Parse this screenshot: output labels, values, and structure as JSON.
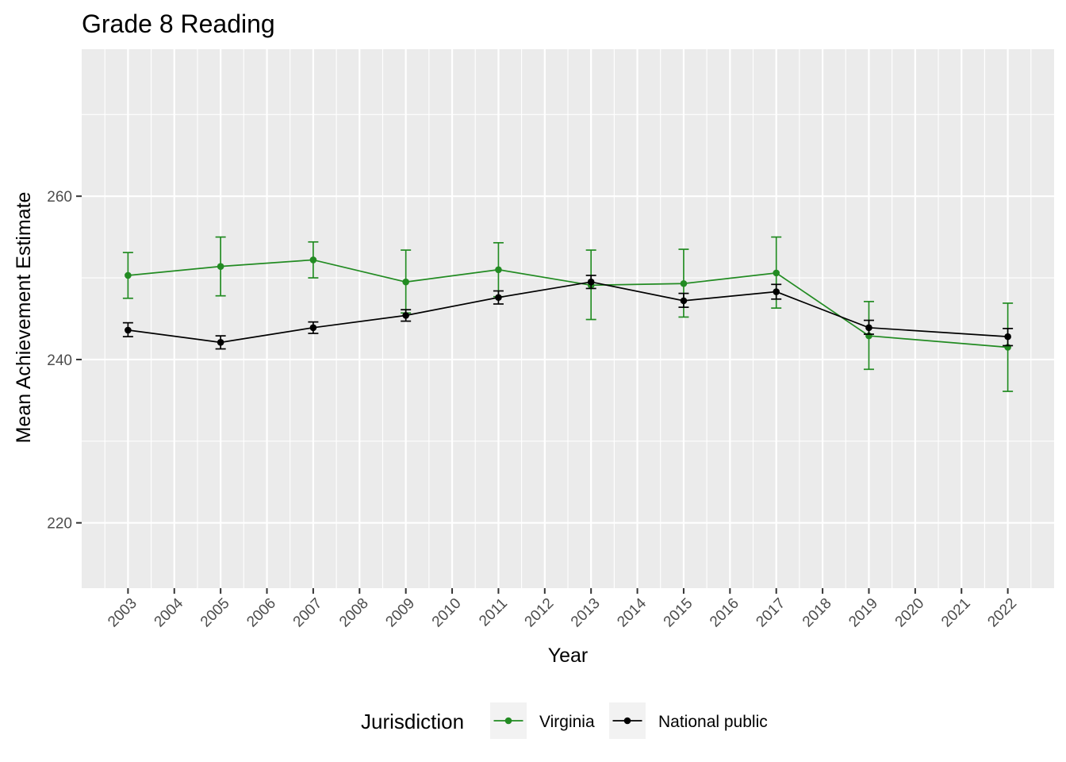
{
  "chart_data": {
    "type": "line",
    "title": "Grade 8 Reading",
    "xlabel": "Year",
    "ylabel": "Mean Achievement Estimate",
    "x": [
      2003,
      2004,
      2005,
      2006,
      2007,
      2008,
      2009,
      2010,
      2011,
      2012,
      2013,
      2014,
      2015,
      2016,
      2017,
      2018,
      2019,
      2020,
      2021,
      2022
    ],
    "x_tick_labels": [
      "2003",
      "2004",
      "2005",
      "2006",
      "2007",
      "2008",
      "2009",
      "2010",
      "2011",
      "2012",
      "2013",
      "2014",
      "2015",
      "2016",
      "2017",
      "2018",
      "2019",
      "2020",
      "2021",
      "2022"
    ],
    "xlim": [
      2002,
      2023
    ],
    "ylim": [
      212,
      278
    ],
    "y_ticks": [
      220,
      240,
      260
    ],
    "y_tick_labels": [
      "220",
      "240",
      "260"
    ],
    "grid": true,
    "legend": {
      "title": "Jurisdiction",
      "position": "bottom"
    },
    "series": [
      {
        "name": "Virginia",
        "color": "#228B22",
        "points": [
          {
            "x": 2003,
            "y": 250.3,
            "lo": 247.5,
            "hi": 253.1
          },
          {
            "x": 2005,
            "y": 251.4,
            "lo": 247.8,
            "hi": 255.0
          },
          {
            "x": 2007,
            "y": 252.2,
            "lo": 250.0,
            "hi": 254.4
          },
          {
            "x": 2009,
            "y": 249.5,
            "lo": 245.7,
            "hi": 253.4
          },
          {
            "x": 2011,
            "y": 251.0,
            "lo": 247.7,
            "hi": 254.3
          },
          {
            "x": 2013,
            "y": 249.1,
            "lo": 244.9,
            "hi": 253.4
          },
          {
            "x": 2015,
            "y": 249.3,
            "lo": 245.2,
            "hi": 253.5
          },
          {
            "x": 2017,
            "y": 250.6,
            "lo": 246.3,
            "hi": 255.0
          },
          {
            "x": 2019,
            "y": 242.9,
            "lo": 238.8,
            "hi": 247.1
          },
          {
            "x": 2022,
            "y": 241.5,
            "lo": 236.1,
            "hi": 246.9
          }
        ]
      },
      {
        "name": "National public",
        "color": "#000000",
        "points": [
          {
            "x": 2003,
            "y": 243.6,
            "lo": 242.8,
            "hi": 244.5
          },
          {
            "x": 2005,
            "y": 242.1,
            "lo": 241.3,
            "hi": 242.9
          },
          {
            "x": 2007,
            "y": 243.9,
            "lo": 243.2,
            "hi": 244.6
          },
          {
            "x": 2009,
            "y": 245.4,
            "lo": 244.7,
            "hi": 246.1
          },
          {
            "x": 2011,
            "y": 247.6,
            "lo": 246.8,
            "hi": 248.4
          },
          {
            "x": 2013,
            "y": 249.5,
            "lo": 248.7,
            "hi": 250.3
          },
          {
            "x": 2015,
            "y": 247.2,
            "lo": 246.4,
            "hi": 248.1
          },
          {
            "x": 2017,
            "y": 248.3,
            "lo": 247.4,
            "hi": 249.2
          },
          {
            "x": 2019,
            "y": 243.9,
            "lo": 243.1,
            "hi": 244.8
          },
          {
            "x": 2022,
            "y": 242.8,
            "lo": 241.7,
            "hi": 243.8
          }
        ]
      }
    ]
  }
}
